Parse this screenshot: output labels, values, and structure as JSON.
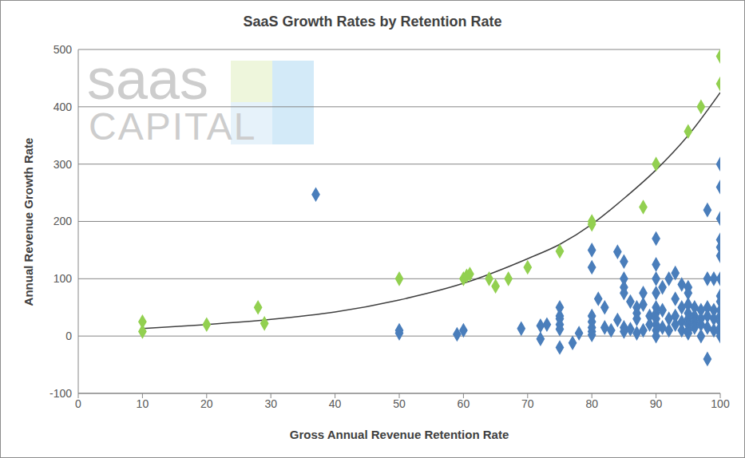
{
  "chart_data": {
    "type": "scatter",
    "title": "SaaS Growth Rates by Retention Rate",
    "x_label": "Gross Annual Revenue Retention Rate",
    "y_label": "Annual Revenue Growth Rate",
    "annotations": [
      "saas",
      "CAPITAL"
    ],
    "xlim": [
      0,
      100
    ],
    "xticks": [
      0,
      10,
      20,
      30,
      40,
      50,
      60,
      70,
      80,
      90,
      100
    ],
    "ylim": [
      -100,
      500
    ],
    "yticks": [
      -100,
      0,
      100,
      200,
      300,
      400,
      500
    ],
    "grid": true,
    "series": [
      {
        "type": "scatter",
        "color": "#4a7ebb",
        "marker": "diamond",
        "x": [
          37,
          50,
          50,
          59,
          60,
          69,
          72,
          72,
          73,
          75,
          75,
          75,
          75,
          75,
          75,
          77,
          78,
          80,
          80,
          80,
          80,
          80,
          80,
          80,
          81,
          82,
          82,
          83,
          84,
          84,
          85,
          85,
          85,
          85,
          85,
          85,
          86,
          86,
          87,
          87,
          87,
          87,
          88,
          88,
          88,
          89,
          89,
          90,
          90,
          90,
          90,
          90,
          90,
          90,
          90,
          90,
          90,
          91,
          91,
          91,
          92,
          92,
          92,
          93,
          93,
          93,
          93,
          94,
          94,
          94,
          94,
          95,
          95,
          95,
          95,
          95,
          95,
          95,
          95,
          96,
          96,
          96,
          96,
          97,
          97,
          97,
          97,
          98,
          98,
          98,
          98,
          98,
          98,
          99,
          99,
          99,
          99,
          100,
          100,
          100,
          100,
          100,
          100,
          100,
          100,
          100,
          100,
          100,
          100,
          100,
          100,
          100
        ],
        "values": [
          247,
          10,
          5,
          3,
          10,
          13,
          -5,
          18,
          20,
          50,
          35,
          30,
          20,
          12,
          -20,
          -12,
          5,
          150,
          120,
          35,
          25,
          15,
          8,
          2,
          65,
          50,
          15,
          10,
          147,
          28,
          130,
          100,
          85,
          75,
          15,
          8,
          60,
          12,
          50,
          40,
          30,
          5,
          75,
          55,
          10,
          35,
          20,
          170,
          125,
          100,
          75,
          50,
          40,
          30,
          20,
          10,
          0,
          85,
          45,
          15,
          100,
          30,
          10,
          110,
          65,
          35,
          20,
          90,
          50,
          25,
          10,
          85,
          75,
          55,
          40,
          30,
          20,
          10,
          5,
          50,
          35,
          25,
          15,
          45,
          30,
          20,
          0,
          220,
          100,
          -40,
          50,
          35,
          15,
          100,
          45,
          30,
          10,
          300,
          260,
          205,
          168,
          155,
          140,
          100,
          70,
          60,
          45,
          35,
          25,
          15,
          5,
          0
        ]
      },
      {
        "type": "scatter",
        "color": "#92d050",
        "marker": "diamond",
        "x": [
          10,
          10,
          20,
          28,
          29,
          50,
          60,
          60.5,
          61,
          64,
          65,
          67,
          70,
          75,
          80,
          80,
          88,
          90,
          95,
          97,
          100,
          100
        ],
        "values": [
          25,
          8,
          20,
          50,
          22,
          100,
          100,
          105,
          108,
          100,
          87,
          100,
          120,
          148,
          200,
          195,
          225,
          300,
          357,
          400,
          488,
          440
        ]
      },
      {
        "type": "line",
        "color": "#404040",
        "line_style": "solid",
        "x": [
          10,
          20,
          30,
          40,
          50,
          60,
          70,
          75,
          80,
          85,
          90,
          95,
          100
        ],
        "values": [
          13,
          20,
          29,
          42,
          63,
          92,
          135,
          160,
          195,
          240,
          290,
          350,
          425
        ]
      }
    ]
  }
}
